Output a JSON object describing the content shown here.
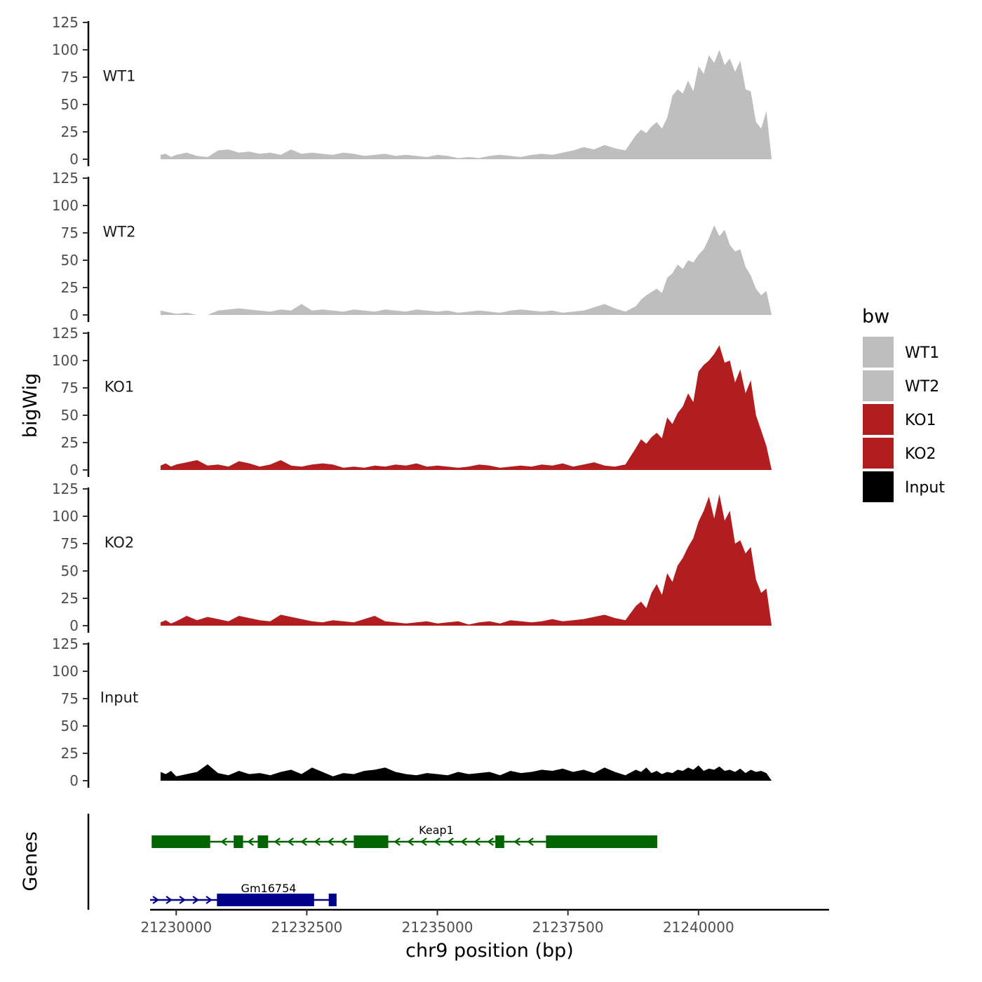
{
  "chart_data": {
    "type": "area",
    "y_axis_title": "bigWig",
    "genes_axis_title": "Genes",
    "x_axis_title": "chr9 position (bp)",
    "x_range": [
      21229500,
      21242500
    ],
    "x_ticks": [
      21230000,
      21232500,
      21235000,
      21237500,
      21240000
    ],
    "y_range": [
      0,
      125
    ],
    "y_ticks": [
      0,
      25,
      50,
      75,
      100,
      125
    ],
    "legend": {
      "title": "bw",
      "entries": [
        {
          "label": "WT1",
          "color": "#bebebe"
        },
        {
          "label": "WT2",
          "color": "#bebebe"
        },
        {
          "label": "KO1",
          "color": "#b21d1f"
        },
        {
          "label": "KO2",
          "color": "#b21d1f"
        },
        {
          "label": "Input",
          "color": "#000000"
        }
      ]
    },
    "series": [
      {
        "name": "WT1",
        "color": "#bebebe",
        "x": [
          21229700,
          21229800,
          21229900,
          21230000,
          21230200,
          21230400,
          21230600,
          21230800,
          21231000,
          21231200,
          21231400,
          21231600,
          21231800,
          21232000,
          21232200,
          21232400,
          21232600,
          21232800,
          21233000,
          21233200,
          21233400,
          21233600,
          21233800,
          21234000,
          21234200,
          21234400,
          21234600,
          21234800,
          21235000,
          21235200,
          21235400,
          21235600,
          21235800,
          21236000,
          21236200,
          21236400,
          21236600,
          21236800,
          21237000,
          21237200,
          21237400,
          21237600,
          21237800,
          21238000,
          21238200,
          21238400,
          21238600,
          21238800,
          21238900,
          21239000,
          21239100,
          21239200,
          21239300,
          21239400,
          21239500,
          21239600,
          21239700,
          21239800,
          21239900,
          21240000,
          21240100,
          21240200,
          21240300,
          21240400,
          21240500,
          21240600,
          21240700,
          21240800,
          21240900,
          21241000,
          21241100,
          21241200,
          21241300,
          21241400
        ],
        "values": [
          4,
          5,
          2,
          4,
          6,
          3,
          2,
          8,
          9,
          6,
          7,
          5,
          6,
          4,
          9,
          5,
          6,
          5,
          4,
          6,
          5,
          3,
          4,
          5,
          3,
          4,
          3,
          2,
          4,
          3,
          1,
          2,
          1,
          3,
          4,
          3,
          2,
          4,
          5,
          4,
          6,
          8,
          11,
          9,
          13,
          10,
          8,
          22,
          27,
          24,
          30,
          34,
          28,
          38,
          58,
          64,
          60,
          72,
          62,
          85,
          78,
          95,
          88,
          100,
          86,
          92,
          80,
          90,
          64,
          62,
          34,
          28,
          44,
          0
        ]
      },
      {
        "name": "WT2",
        "color": "#bebebe",
        "x": [
          21229700,
          21229800,
          21229900,
          21230000,
          21230200,
          21230400,
          21230600,
          21230800,
          21231000,
          21231200,
          21231400,
          21231600,
          21231800,
          21232000,
          21232200,
          21232400,
          21232600,
          21232800,
          21233000,
          21233200,
          21233400,
          21233600,
          21233800,
          21234000,
          21234200,
          21234400,
          21234600,
          21234800,
          21235000,
          21235200,
          21235400,
          21235600,
          21235800,
          21236000,
          21236200,
          21236400,
          21236600,
          21236800,
          21237000,
          21237200,
          21237400,
          21237600,
          21237800,
          21238000,
          21238200,
          21238400,
          21238600,
          21238800,
          21238900,
          21239000,
          21239100,
          21239200,
          21239300,
          21239400,
          21239500,
          21239600,
          21239700,
          21239800,
          21239900,
          21240000,
          21240100,
          21240200,
          21240300,
          21240400,
          21240500,
          21240600,
          21240700,
          21240800,
          21240900,
          21241000,
          21241100,
          21241200,
          21241300,
          21241400
        ],
        "values": [
          4,
          3,
          2,
          1,
          2,
          0,
          0,
          4,
          5,
          6,
          5,
          4,
          3,
          5,
          4,
          10,
          4,
          5,
          4,
          3,
          5,
          4,
          3,
          5,
          4,
          3,
          5,
          4,
          3,
          4,
          2,
          3,
          4,
          3,
          2,
          4,
          5,
          4,
          3,
          4,
          2,
          3,
          4,
          7,
          10,
          6,
          3,
          8,
          14,
          18,
          21,
          24,
          20,
          34,
          38,
          46,
          42,
          50,
          48,
          55,
          60,
          70,
          82,
          72,
          78,
          64,
          58,
          60,
          44,
          36,
          24,
          18,
          22,
          0
        ]
      },
      {
        "name": "KO1",
        "color": "#b21d1f",
        "x": [
          21229700,
          21229800,
          21229900,
          21230000,
          21230200,
          21230400,
          21230600,
          21230800,
          21231000,
          21231200,
          21231400,
          21231600,
          21231800,
          21232000,
          21232200,
          21232400,
          21232600,
          21232800,
          21233000,
          21233200,
          21233400,
          21233600,
          21233800,
          21234000,
          21234200,
          21234400,
          21234600,
          21234800,
          21235000,
          21235200,
          21235400,
          21235600,
          21235800,
          21236000,
          21236200,
          21236400,
          21236600,
          21236800,
          21237000,
          21237200,
          21237400,
          21237600,
          21237800,
          21238000,
          21238200,
          21238400,
          21238600,
          21238800,
          21238900,
          21239000,
          21239100,
          21239200,
          21239300,
          21239400,
          21239500,
          21239600,
          21239700,
          21239800,
          21239900,
          21240000,
          21240100,
          21240200,
          21240300,
          21240400,
          21240500,
          21240600,
          21240700,
          21240800,
          21240900,
          21241000,
          21241100,
          21241200,
          21241300,
          21241400
        ],
        "values": [
          4,
          6,
          3,
          5,
          7,
          9,
          4,
          5,
          3,
          8,
          6,
          3,
          5,
          9,
          4,
          3,
          5,
          6,
          5,
          2,
          3,
          2,
          4,
          3,
          5,
          4,
          6,
          3,
          4,
          3,
          2,
          3,
          5,
          4,
          2,
          3,
          4,
          3,
          5,
          4,
          6,
          3,
          5,
          7,
          4,
          3,
          5,
          20,
          28,
          24,
          30,
          34,
          29,
          48,
          42,
          52,
          58,
          70,
          62,
          90,
          96,
          100,
          106,
          114,
          98,
          100,
          80,
          92,
          70,
          82,
          50,
          36,
          22,
          0
        ]
      },
      {
        "name": "KO2",
        "color": "#b21d1f",
        "x": [
          21229700,
          21229800,
          21229900,
          21230000,
          21230200,
          21230400,
          21230600,
          21230800,
          21231000,
          21231200,
          21231400,
          21231600,
          21231800,
          21232000,
          21232200,
          21232400,
          21232600,
          21232800,
          21233000,
          21233200,
          21233400,
          21233600,
          21233800,
          21234000,
          21234200,
          21234400,
          21234600,
          21234800,
          21235000,
          21235200,
          21235400,
          21235600,
          21235800,
          21236000,
          21236200,
          21236400,
          21236600,
          21236800,
          21237000,
          21237200,
          21237400,
          21237600,
          21237800,
          21238000,
          21238200,
          21238400,
          21238600,
          21238800,
          21238900,
          21239000,
          21239100,
          21239200,
          21239300,
          21239400,
          21239500,
          21239600,
          21239700,
          21239800,
          21239900,
          21240000,
          21240100,
          21240200,
          21240300,
          21240400,
          21240500,
          21240600,
          21240700,
          21240800,
          21240900,
          21241000,
          21241100,
          21241200,
          21241300,
          21241400
        ],
        "values": [
          3,
          5,
          2,
          4,
          9,
          5,
          8,
          6,
          4,
          9,
          7,
          5,
          4,
          10,
          8,
          6,
          4,
          3,
          5,
          4,
          3,
          6,
          9,
          4,
          3,
          2,
          3,
          4,
          2,
          3,
          4,
          1,
          3,
          4,
          2,
          5,
          4,
          3,
          4,
          6,
          4,
          5,
          6,
          8,
          10,
          7,
          5,
          18,
          22,
          16,
          30,
          38,
          28,
          48,
          40,
          55,
          62,
          72,
          80,
          95,
          105,
          118,
          98,
          120,
          96,
          105,
          75,
          78,
          66,
          72,
          42,
          30,
          34,
          0
        ]
      },
      {
        "name": "Input",
        "color": "#000000",
        "x": [
          21229700,
          21229800,
          21229900,
          21230000,
          21230200,
          21230400,
          21230600,
          21230800,
          21231000,
          21231200,
          21231400,
          21231600,
          21231800,
          21232000,
          21232200,
          21232400,
          21232600,
          21232800,
          21233000,
          21233200,
          21233400,
          21233600,
          21233800,
          21234000,
          21234200,
          21234400,
          21234600,
          21234800,
          21235000,
          21235200,
          21235400,
          21235600,
          21235800,
          21236000,
          21236200,
          21236400,
          21236600,
          21236800,
          21237000,
          21237200,
          21237400,
          21237600,
          21237800,
          21238000,
          21238200,
          21238400,
          21238600,
          21238800,
          21238900,
          21239000,
          21239100,
          21239200,
          21239300,
          21239400,
          21239500,
          21239600,
          21239700,
          21239800,
          21239900,
          21240000,
          21240100,
          21240200,
          21240300,
          21240400,
          21240500,
          21240600,
          21240700,
          21240800,
          21240900,
          21241000,
          21241100,
          21241200,
          21241300,
          21241400
        ],
        "values": [
          8,
          6,
          9,
          4,
          6,
          8,
          15,
          7,
          5,
          9,
          6,
          7,
          5,
          8,
          10,
          6,
          12,
          8,
          4,
          7,
          6,
          9,
          10,
          12,
          8,
          6,
          5,
          7,
          6,
          5,
          8,
          6,
          7,
          8,
          5,
          9,
          7,
          8,
          10,
          9,
          11,
          8,
          10,
          7,
          12,
          8,
          5,
          10,
          8,
          12,
          7,
          9,
          6,
          8,
          7,
          10,
          9,
          12,
          10,
          14,
          9,
          11,
          10,
          13,
          9,
          10,
          8,
          11,
          7,
          10,
          8,
          9,
          7,
          0
        ]
      }
    ],
    "genes": [
      {
        "name": "Keap1",
        "strand": "-",
        "color": "#006400",
        "start": 21229530,
        "end": 21239210,
        "exons": [
          [
            21229530,
            21230650
          ],
          [
            21231100,
            21231280
          ],
          [
            21231560,
            21231760
          ],
          [
            21233400,
            21234060
          ],
          [
            21236110,
            21236280
          ],
          [
            21237080,
            21239210
          ]
        ]
      },
      {
        "name": "Gm16754",
        "strand": "+",
        "color": "#00008b",
        "start": 21229500,
        "end": 21233070,
        "exons": [
          [
            21230780,
            21232640
          ],
          [
            21232920,
            21233070
          ]
        ]
      }
    ]
  }
}
